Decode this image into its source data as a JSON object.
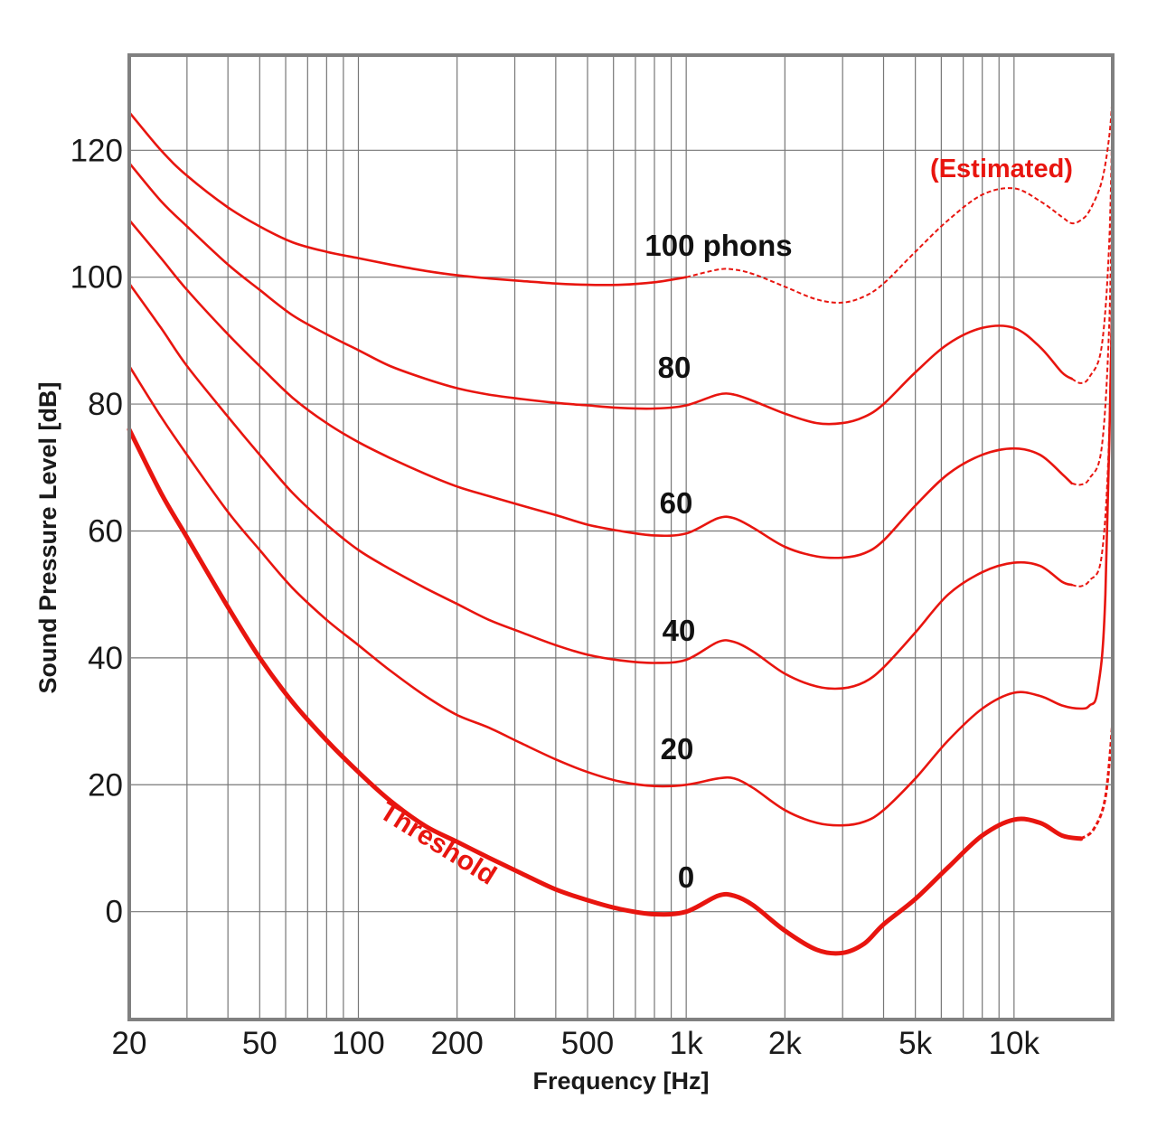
{
  "chart_data": {
    "type": "line",
    "title": "",
    "xlabel": "Frequency [Hz]",
    "ylabel": "Sound Pressure Level [dB]",
    "xscale": "log",
    "xlim": [
      20,
      20000
    ],
    "ylim": [
      -17,
      135
    ],
    "grid": true,
    "x_ticks": [
      {
        "value": 20,
        "label": "20"
      },
      {
        "value": 50,
        "label": "50"
      },
      {
        "value": 100,
        "label": "100"
      },
      {
        "value": 200,
        "label": "200"
      },
      {
        "value": 500,
        "label": "500"
      },
      {
        "value": 1000,
        "label": "1k"
      },
      {
        "value": 2000,
        "label": "2k"
      },
      {
        "value": 5000,
        "label": "5k"
      },
      {
        "value": 10000,
        "label": "10k"
      }
    ],
    "y_ticks": [
      0,
      20,
      40,
      60,
      80,
      100,
      120
    ],
    "colors": {
      "curve": "#e8150f",
      "grid": "#777777",
      "frame": "#808080"
    },
    "series": [
      {
        "name": "0",
        "label": "0",
        "threshold": true,
        "points": [
          [
            20,
            76
          ],
          [
            25,
            66
          ],
          [
            30,
            59
          ],
          [
            40,
            48
          ],
          [
            50,
            40
          ],
          [
            63,
            33
          ],
          [
            80,
            27
          ],
          [
            100,
            22
          ],
          [
            125,
            17.5
          ],
          [
            160,
            13.5
          ],
          [
            200,
            11
          ],
          [
            250,
            8.5
          ],
          [
            315,
            6
          ],
          [
            400,
            3.5
          ],
          [
            500,
            1.8
          ],
          [
            630,
            0.4
          ],
          [
            800,
            -0.4
          ],
          [
            1000,
            0
          ],
          [
            1250,
            2.5
          ],
          [
            1400,
            2.5
          ],
          [
            1600,
            1
          ],
          [
            2000,
            -3
          ],
          [
            2500,
            -6
          ],
          [
            3000,
            -6.5
          ],
          [
            3500,
            -5
          ],
          [
            4000,
            -2
          ],
          [
            5000,
            2
          ],
          [
            6300,
            7
          ],
          [
            8000,
            12
          ],
          [
            10000,
            14.5
          ],
          [
            12000,
            14
          ],
          [
            14000,
            12
          ],
          [
            16000,
            11.5
          ]
        ],
        "estimated": [
          [
            16000,
            11.5
          ],
          [
            17500,
            13
          ],
          [
            19000,
            18
          ],
          [
            20000,
            30
          ]
        ]
      },
      {
        "name": "20",
        "label": "20",
        "points": [
          [
            20,
            86
          ],
          [
            25,
            78
          ],
          [
            30,
            72
          ],
          [
            40,
            63
          ],
          [
            50,
            57
          ],
          [
            63,
            51
          ],
          [
            80,
            46
          ],
          [
            100,
            42
          ],
          [
            125,
            38
          ],
          [
            160,
            34
          ],
          [
            200,
            31
          ],
          [
            250,
            29
          ],
          [
            315,
            26.5
          ],
          [
            400,
            24
          ],
          [
            500,
            22
          ],
          [
            630,
            20.5
          ],
          [
            800,
            19.8
          ],
          [
            1000,
            20
          ],
          [
            1250,
            21
          ],
          [
            1400,
            21
          ],
          [
            1600,
            19.5
          ],
          [
            2000,
            16
          ],
          [
            2500,
            14
          ],
          [
            3000,
            13.6
          ],
          [
            3500,
            14.2
          ],
          [
            4000,
            16
          ],
          [
            5000,
            21
          ],
          [
            6300,
            27
          ],
          [
            8000,
            32
          ],
          [
            10000,
            34.5
          ],
          [
            12000,
            34
          ],
          [
            14000,
            32.5
          ],
          [
            16000,
            32
          ],
          [
            17000,
            32.5
          ],
          [
            18000,
            35
          ],
          [
            19000,
            50
          ],
          [
            20000,
            100
          ]
        ]
      },
      {
        "name": "40",
        "label": "40",
        "points": [
          [
            20,
            99
          ],
          [
            25,
            92
          ],
          [
            30,
            86
          ],
          [
            40,
            78
          ],
          [
            50,
            72
          ],
          [
            63,
            66
          ],
          [
            80,
            61
          ],
          [
            100,
            57
          ],
          [
            125,
            54
          ],
          [
            160,
            51
          ],
          [
            200,
            48.5
          ],
          [
            250,
            46
          ],
          [
            315,
            44
          ],
          [
            400,
            42
          ],
          [
            500,
            40.5
          ],
          [
            630,
            39.6
          ],
          [
            800,
            39.2
          ],
          [
            1000,
            39.7
          ],
          [
            1250,
            42.5
          ],
          [
            1400,
            42.5
          ],
          [
            1600,
            41
          ],
          [
            2000,
            37.5
          ],
          [
            2500,
            35.5
          ],
          [
            3000,
            35.2
          ],
          [
            3500,
            36.2
          ],
          [
            4000,
            38.5
          ],
          [
            5000,
            44
          ],
          [
            6300,
            50
          ],
          [
            8000,
            53.5
          ],
          [
            10000,
            55
          ],
          [
            12000,
            54.5
          ],
          [
            14000,
            52
          ],
          [
            15000,
            51.5
          ]
        ],
        "estimated": [
          [
            15000,
            51.5
          ],
          [
            16000,
            51.3
          ],
          [
            17000,
            52.2
          ],
          [
            18500,
            56
          ],
          [
            19500,
            75
          ],
          [
            20000,
            110
          ]
        ]
      },
      {
        "name": "60",
        "label": "60",
        "points": [
          [
            20,
            109
          ],
          [
            25,
            103
          ],
          [
            30,
            98
          ],
          [
            40,
            91
          ],
          [
            50,
            86
          ],
          [
            63,
            81
          ],
          [
            80,
            77
          ],
          [
            100,
            74
          ],
          [
            125,
            71.5
          ],
          [
            160,
            69
          ],
          [
            200,
            67
          ],
          [
            250,
            65.5
          ],
          [
            315,
            64
          ],
          [
            400,
            62.5
          ],
          [
            500,
            61
          ],
          [
            630,
            60
          ],
          [
            800,
            59.3
          ],
          [
            1000,
            59.6
          ],
          [
            1250,
            62
          ],
          [
            1400,
            62
          ],
          [
            1600,
            60.5
          ],
          [
            2000,
            57.5
          ],
          [
            2500,
            56
          ],
          [
            3000,
            55.8
          ],
          [
            3500,
            56.5
          ],
          [
            4000,
            58.5
          ],
          [
            5000,
            64
          ],
          [
            6300,
            69
          ],
          [
            8000,
            72
          ],
          [
            10000,
            73
          ],
          [
            12000,
            72
          ],
          [
            14000,
            69
          ],
          [
            15000,
            67.5
          ]
        ],
        "estimated": [
          [
            15000,
            67.5
          ],
          [
            16000,
            67.3
          ],
          [
            17000,
            68.3
          ],
          [
            18500,
            73
          ],
          [
            19500,
            92
          ],
          [
            20000,
            120
          ]
        ]
      },
      {
        "name": "80",
        "label": "80",
        "points": [
          [
            20,
            118
          ],
          [
            25,
            112
          ],
          [
            30,
            108
          ],
          [
            40,
            102
          ],
          [
            50,
            98
          ],
          [
            63,
            94
          ],
          [
            80,
            91
          ],
          [
            100,
            88.5
          ],
          [
            125,
            86
          ],
          [
            160,
            84
          ],
          [
            200,
            82.5
          ],
          [
            250,
            81.5
          ],
          [
            315,
            80.8
          ],
          [
            400,
            80.2
          ],
          [
            500,
            79.8
          ],
          [
            630,
            79.4
          ],
          [
            800,
            79.3
          ],
          [
            1000,
            79.8
          ],
          [
            1250,
            81.5
          ],
          [
            1400,
            81.5
          ],
          [
            1600,
            80.5
          ],
          [
            2000,
            78.5
          ],
          [
            2500,
            77
          ],
          [
            3000,
            77
          ],
          [
            3500,
            78
          ],
          [
            4000,
            80
          ],
          [
            5000,
            85
          ],
          [
            6300,
            89.5
          ],
          [
            8000,
            92
          ],
          [
            10000,
            92
          ],
          [
            12000,
            89
          ],
          [
            14000,
            85
          ],
          [
            15000,
            84
          ]
        ],
        "estimated": [
          [
            15000,
            84
          ],
          [
            16000,
            83.3
          ],
          [
            17000,
            84.3
          ],
          [
            18500,
            89
          ],
          [
            19500,
            105
          ],
          [
            20000,
            128
          ]
        ]
      },
      {
        "name": "100",
        "label": "100 phons",
        "points": [
          [
            20,
            126
          ],
          [
            25,
            120
          ],
          [
            30,
            116
          ],
          [
            40,
            111
          ],
          [
            50,
            108
          ],
          [
            63,
            105.5
          ],
          [
            80,
            104
          ],
          [
            100,
            103
          ],
          [
            125,
            102
          ],
          [
            160,
            101
          ],
          [
            200,
            100.3
          ],
          [
            250,
            99.8
          ],
          [
            315,
            99.4
          ],
          [
            400,
            99
          ],
          [
            500,
            98.8
          ],
          [
            630,
            98.8
          ],
          [
            800,
            99.2
          ],
          [
            1000,
            100
          ]
        ],
        "estimated": [
          [
            1000,
            100
          ],
          [
            1250,
            101.2
          ],
          [
            1400,
            101.2
          ],
          [
            1600,
            100.5
          ],
          [
            2000,
            98.5
          ],
          [
            2500,
            96.5
          ],
          [
            3000,
            96
          ],
          [
            3500,
            97
          ],
          [
            4000,
            99
          ],
          [
            5000,
            104
          ],
          [
            6300,
            109
          ],
          [
            8000,
            113
          ],
          [
            10000,
            114
          ],
          [
            12000,
            112
          ],
          [
            14000,
            109.5
          ],
          [
            15000,
            108.5
          ],
          [
            16000,
            109
          ],
          [
            17000,
            110.5
          ],
          [
            18500,
            115
          ],
          [
            19500,
            122
          ],
          [
            20000,
            129
          ]
        ]
      }
    ]
  },
  "labels": {
    "estimated": "(Estimated)",
    "threshold": "Threshold"
  }
}
